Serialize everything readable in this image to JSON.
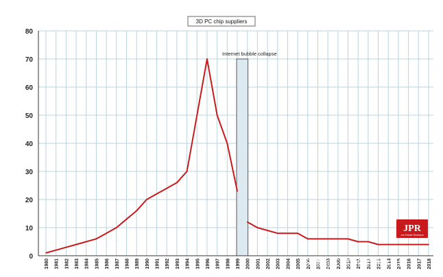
{
  "chart_data": {
    "type": "line",
    "title": "3D PC chip suppliers",
    "x": [
      1980,
      1981,
      1982,
      1983,
      1984,
      1985,
      1986,
      1987,
      1988,
      1989,
      1990,
      1991,
      1992,
      1993,
      1994,
      1995,
      1996,
      1997,
      1998,
      1999,
      2000,
      2001,
      2002,
      2003,
      2004,
      2005,
      2006,
      2007,
      2008,
      2009,
      2010,
      2011,
      2012,
      2013,
      2014,
      2015,
      2016,
      2017,
      2018
    ],
    "x_tick_labels": [
      "1980",
      "1981",
      "1982",
      "1983",
      "1984",
      "1985",
      "1986",
      "1987",
      "1988",
      "1989",
      "1990",
      "1991",
      "1992",
      "1993",
      "1994",
      "1995",
      "1996",
      "1997",
      "1998",
      "1999",
      "2000",
      "2001",
      "2002",
      "2003",
      "2004",
      "2005",
      "2006",
      "2007",
      "2008",
      "2009",
      "2010",
      "2011",
      "2012",
      "2013",
      "2014",
      "2015",
      "2016",
      "2017",
      "2018"
    ],
    "series": [
      {
        "x": [
          1980,
          1981,
          1982,
          1983,
          1984,
          1985,
          1986,
          1987,
          1988,
          1989,
          1990,
          1991,
          1992,
          1993,
          1994,
          1995,
          1996,
          1997,
          1998,
          1999
        ],
        "values": [
          1,
          2,
          3,
          4,
          5,
          6,
          8,
          10,
          13,
          16,
          20,
          22,
          24,
          26,
          30,
          50,
          70,
          50,
          40,
          23
        ]
      },
      {
        "x": [
          2000,
          2001,
          2002,
          2003,
          2004,
          2005,
          2006,
          2007,
          2008,
          2009,
          2010,
          2011,
          2012,
          2013,
          2014,
          2015,
          2016,
          2017,
          2018
        ],
        "values": [
          12,
          10,
          9,
          8,
          8,
          8,
          6,
          6,
          6,
          6,
          6,
          5,
          5,
          4,
          4,
          4,
          4,
          4,
          4
        ]
      }
    ],
    "ylim": [
      0,
      80
    ],
    "yticks": [
      0,
      10,
      20,
      30,
      40,
      50,
      60,
      70,
      80
    ],
    "xlim": [
      1980,
      2018
    ],
    "grid": true,
    "line_color": "#c8191c",
    "annotations": [
      {
        "text": "Internet bubble collapse",
        "x_start": 1999,
        "x_end": 2000,
        "y_top": 70,
        "fill": "#dce9f0"
      }
    ]
  },
  "logo": {
    "text": "JPR",
    "subtext": "Jon Peddie Research",
    "color": "#c8191c"
  },
  "watermark": {
    "text": "头条 @EETOP半导体社区"
  }
}
